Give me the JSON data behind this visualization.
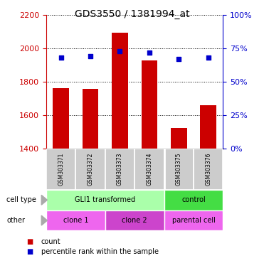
{
  "title": "GDS3550 / 1381994_at",
  "samples": [
    "GSM303371",
    "GSM303372",
    "GSM303373",
    "GSM303374",
    "GSM303375",
    "GSM303376"
  ],
  "counts": [
    1762,
    1758,
    2093,
    1930,
    1524,
    1662
  ],
  "percentile_ranks": [
    68,
    69,
    73,
    72,
    67,
    68
  ],
  "ylim_left": [
    1400,
    2200
  ],
  "ylim_right": [
    0,
    100
  ],
  "yticks_left": [
    1400,
    1600,
    1800,
    2000,
    2200
  ],
  "yticks_right": [
    0,
    25,
    50,
    75,
    100
  ],
  "bar_color": "#cc0000",
  "dot_color": "#0000cc",
  "bar_width": 0.55,
  "tick_color_left": "#cc0000",
  "tick_color_right": "#0000cc",
  "bg_color": "#ffffff",
  "sample_box_color": "#cccccc",
  "cell_type_gli_color": "#aaffaa",
  "cell_type_ctrl_color": "#44dd44",
  "clone1_color": "#ee66ee",
  "clone2_color": "#cc44cc",
  "parental_color": "#ee66ee"
}
